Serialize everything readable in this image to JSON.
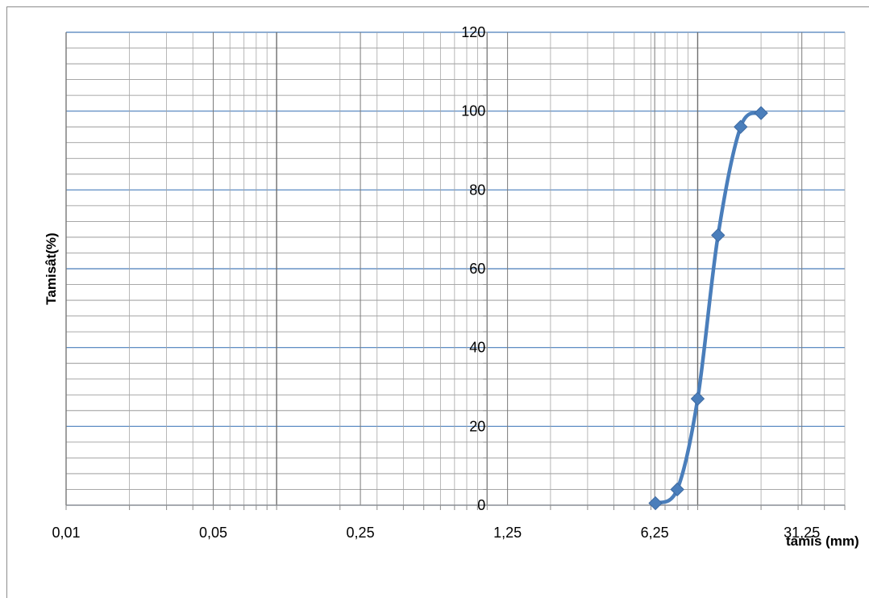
{
  "chart_data": {
    "type": "line",
    "title": "",
    "xlabel": "tamis (mm)",
    "ylabel": "Tamisât(%)",
    "x_scale": "log",
    "xlim": [
      0.01,
      50
    ],
    "ylim": [
      0,
      120
    ],
    "x_ticks": [
      {
        "value": 0.01,
        "label": "0,01"
      },
      {
        "value": 0.05,
        "label": "0,05"
      },
      {
        "value": 0.25,
        "label": "0,25"
      },
      {
        "value": 1.25,
        "label": "1,25"
      },
      {
        "value": 6.25,
        "label": "6,25"
      },
      {
        "value": 31.25,
        "label": "31,25"
      }
    ],
    "y_ticks": [
      0,
      20,
      40,
      60,
      80,
      100,
      120
    ],
    "grid": true,
    "legend": "none",
    "series": [
      {
        "color": "#4a7ebb",
        "marker": "diamond",
        "smooth": true,
        "x": [
          6.3,
          8,
          10,
          12.5,
          16,
          20
        ],
        "y": [
          0.5,
          4,
          27,
          68.5,
          96,
          99.5
        ]
      }
    ]
  }
}
